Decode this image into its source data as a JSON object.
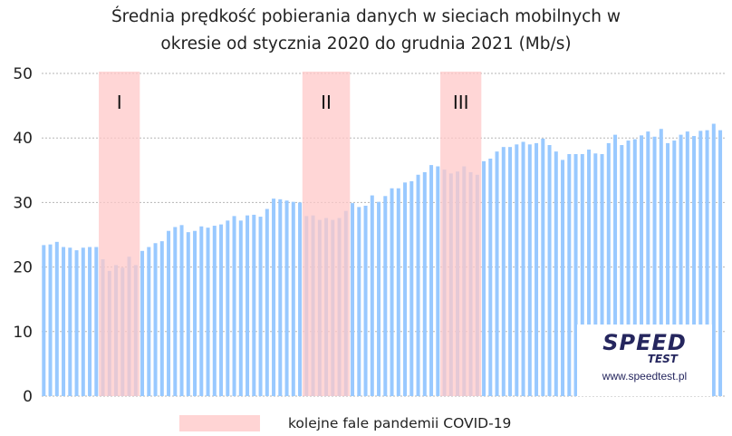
{
  "chart_data": {
    "type": "bar",
    "title": [
      "Średnia prędkość pobierania danych w sieciach mobilnych w",
      "okresie od stycznia 2020 do grudnia 2021 (Mb/s)"
    ],
    "xlabel": "",
    "ylabel": "",
    "ylim": [
      0,
      50
    ],
    "yticks": [
      "0",
      "10",
      "20",
      "30",
      "40",
      "50"
    ],
    "grid": true,
    "bar_color": "#99c9ff",
    "band_color": "#ffc8c8",
    "values": [
      23.4,
      23.5,
      23.9,
      23.1,
      23.0,
      22.6,
      23.0,
      23.1,
      23.1,
      21.2,
      19.4,
      20.3,
      19.9,
      21.6,
      20.3,
      22.5,
      23.1,
      23.7,
      24.0,
      25.6,
      26.2,
      26.5,
      25.4,
      25.6,
      26.3,
      26.1,
      26.4,
      26.6,
      27.2,
      27.9,
      27.2,
      28.0,
      28.1,
      27.8,
      29.0,
      30.6,
      30.5,
      30.3,
      30.1,
      30.0,
      27.9,
      28.0,
      27.3,
      27.6,
      27.3,
      27.6,
      28.7,
      29.9,
      29.3,
      29.5,
      31.1,
      30.1,
      31.0,
      32.2,
      32.2,
      33.1,
      33.3,
      34.3,
      34.7,
      35.8,
      35.6,
      35.1,
      34.5,
      34.8,
      35.6,
      34.7,
      34.3,
      36.4,
      36.8,
      37.9,
      38.6,
      38.6,
      39.0,
      39.4,
      39.0,
      39.2,
      39.9,
      38.9,
      37.9,
      36.6,
      37.5,
      37.5,
      37.5,
      38.2,
      37.6,
      37.5,
      39.2,
      40.5,
      38.9,
      39.6,
      39.8,
      40.4,
      41.0,
      40.2,
      41.4,
      39.2,
      39.6,
      40.5,
      41.0,
      40.3,
      41.1,
      41.2,
      42.2,
      41.2
    ],
    "bands": [
      {
        "label": "I",
        "from_index": 9,
        "to_index": 14
      },
      {
        "label": "II",
        "from_index": 40,
        "to_index": 46
      },
      {
        "label": "III",
        "from_index": 61,
        "to_index": 66
      }
    ],
    "legend": {
      "label": "kolejne fale pandemii COVID-19",
      "placement": "bottom"
    }
  },
  "logo": {
    "brand": "SPEED",
    "sub": "TEST",
    "url": "www.speedtest.pl"
  }
}
